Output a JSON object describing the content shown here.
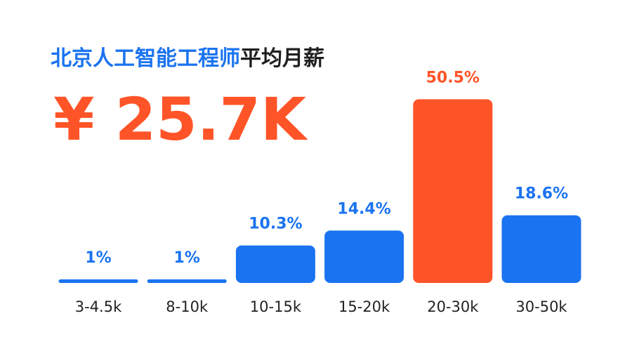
{
  "chart_data": {
    "type": "bar",
    "title_parts": [
      {
        "text": "北京人工智能工程师",
        "color": "#1a73f0"
      },
      {
        "text": "平均月薪",
        "color": "#1f1f1f"
      }
    ],
    "headline": "¥ 25.7K",
    "headline_color": "#ff5428",
    "categories": [
      "3-4.5k",
      "8-10k",
      "10-15k",
      "15-20k",
      "20-30k",
      "30-50k"
    ],
    "values": [
      1,
      1,
      10.3,
      14.4,
      50.5,
      18.6
    ],
    "value_labels": [
      "1%",
      "1%",
      "10.3%",
      "14.4%",
      "50.5%",
      "18.6%"
    ],
    "colors": [
      "#1a73f0",
      "#1a73f0",
      "#1a73f0",
      "#1a73f0",
      "#ff5428",
      "#1a73f0"
    ]
  }
}
